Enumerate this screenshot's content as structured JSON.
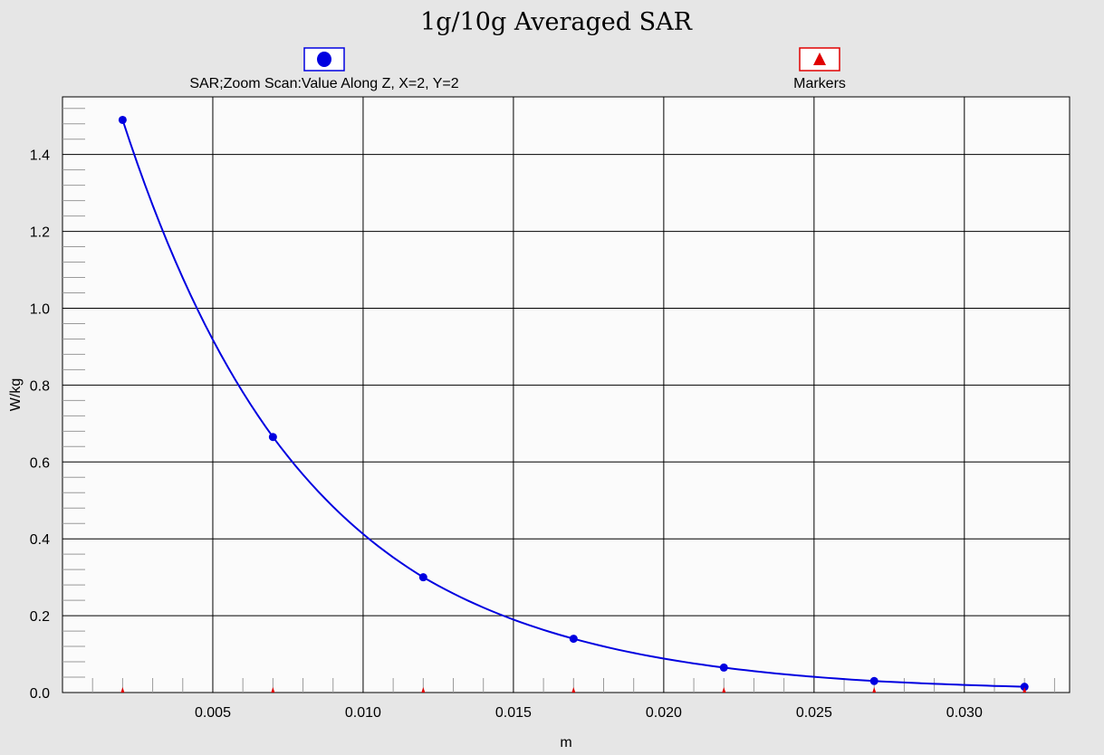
{
  "chart_data": {
    "type": "line",
    "title": "1g/10g Averaged SAR",
    "xlabel": "m",
    "ylabel": "W/kg",
    "xlim": [
      0.0,
      0.0335
    ],
    "ylim": [
      0.0,
      1.55
    ],
    "grid": true,
    "x_ticks": [
      0.005,
      0.01,
      0.015,
      0.02,
      0.025,
      0.03
    ],
    "x_tick_labels": [
      "0.005",
      "0.010",
      "0.015",
      "0.020",
      "0.025",
      "0.030"
    ],
    "y_ticks": [
      0.0,
      0.2,
      0.4,
      0.6,
      0.8,
      1.0,
      1.2,
      1.4
    ],
    "y_tick_labels": [
      "0.0",
      "0.2",
      "0.4",
      "0.6",
      "0.8",
      "1.0",
      "1.2",
      "1.4"
    ],
    "series": [
      {
        "name": "SAR;Zoom Scan:Value Along Z, X=2, Y=2",
        "color": "#0000e0",
        "marker": "circle",
        "x": [
          0.002,
          0.007,
          0.012,
          0.017,
          0.022,
          0.027,
          0.032
        ],
        "y": [
          1.49,
          0.665,
          0.3,
          0.14,
          0.065,
          0.03,
          0.015
        ]
      },
      {
        "name": "Markers",
        "color": "#e00000",
        "marker": "triangle",
        "x": [
          0.002,
          0.007,
          0.012,
          0.017,
          0.022,
          0.027,
          0.032
        ],
        "y": [
          0.0,
          0.0,
          0.0,
          0.0,
          0.0,
          0.0,
          0.0
        ]
      }
    ],
    "legend_position": "top"
  }
}
